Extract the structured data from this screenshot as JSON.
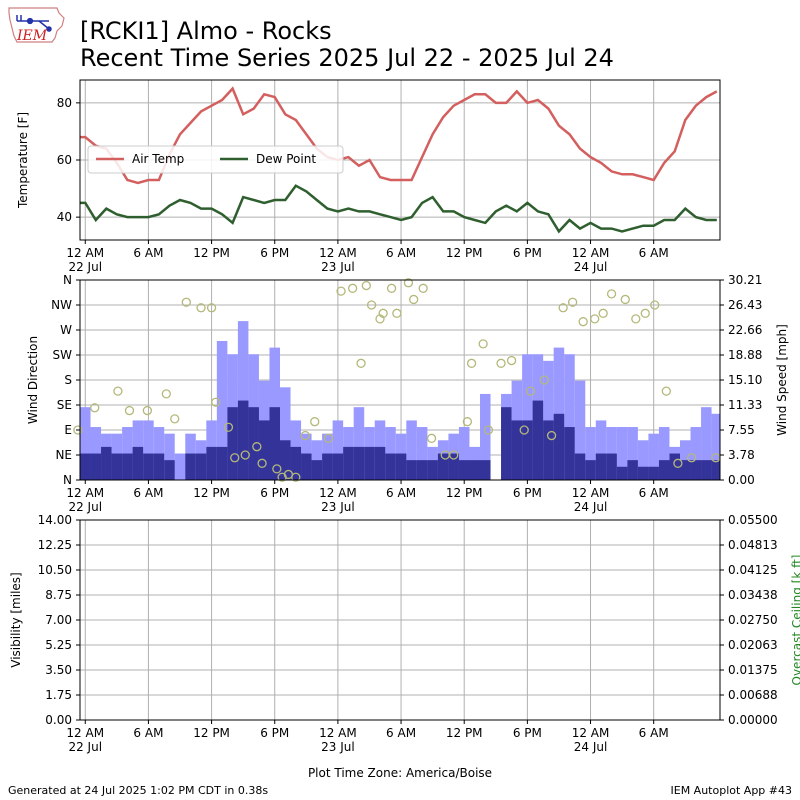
{
  "header": {
    "logo_text": "IEM",
    "title_line1": "[RCKI1] Almo - Rocks",
    "title_line2": "Recent Time Series 2025 Jul 22 - 2025 Jul 24"
  },
  "footer": {
    "generated": "Generated at 24 Jul 2025 1:02 PM CDT in 0.38s",
    "app": "IEM Autoplot App #43"
  },
  "chart_data": [
    {
      "type": "line",
      "ylabel": "Temperature [F]",
      "ylim": [
        32,
        88
      ],
      "yticks": [
        40,
        60,
        80
      ],
      "x_range_hours": [
        -0.5,
        60.3
      ],
      "grid": true,
      "legend_position": "center-left",
      "series": [
        {
          "name": "Air Temp",
          "color": "#d35f5f",
          "x": [
            -1,
            0,
            1,
            2,
            3,
            4,
            5,
            6,
            7,
            8,
            9,
            10,
            11,
            12,
            13,
            14,
            15,
            16,
            17,
            18,
            19,
            20,
            21,
            22,
            23,
            24,
            25,
            26,
            27,
            28,
            29,
            30,
            31,
            32,
            33,
            34,
            35,
            36,
            37,
            38,
            39,
            40,
            41,
            42,
            43,
            44,
            45,
            46,
            47,
            48,
            49,
            50,
            51,
            52,
            53,
            54,
            55,
            56,
            57,
            58,
            59,
            60
          ],
          "values": [
            68,
            68,
            65,
            64,
            59,
            53,
            52,
            53,
            53,
            62,
            69,
            73,
            77,
            79,
            81,
            85,
            76,
            78,
            83,
            82,
            76,
            74,
            69,
            64,
            61,
            60,
            61,
            58,
            60,
            54,
            53,
            53,
            53,
            61,
            69,
            75,
            79,
            81,
            83,
            83,
            80,
            80,
            84,
            80,
            81,
            78,
            72,
            69,
            64,
            61,
            59,
            56,
            55,
            55,
            54,
            53,
            59,
            63,
            74,
            79,
            82,
            84
          ]
        },
        {
          "name": "Dew Point",
          "color": "#2f5f2f",
          "x": [
            -1,
            0,
            1,
            2,
            3,
            4,
            5,
            6,
            7,
            8,
            9,
            10,
            11,
            12,
            13,
            14,
            15,
            16,
            17,
            18,
            19,
            20,
            21,
            22,
            23,
            24,
            25,
            26,
            27,
            28,
            29,
            30,
            31,
            32,
            33,
            34,
            35,
            36,
            37,
            38,
            39,
            40,
            41,
            42,
            43,
            44,
            45,
            46,
            47,
            48,
            49,
            50,
            51,
            52,
            53,
            54,
            55,
            56,
            57,
            58,
            59,
            60
          ],
          "values": [
            45,
            45,
            39,
            43,
            41,
            40,
            40,
            40,
            41,
            44,
            46,
            45,
            43,
            43,
            41,
            38,
            47,
            46,
            45,
            46,
            46,
            51,
            49,
            46,
            43,
            42,
            43,
            42,
            42,
            41,
            40,
            39,
            40,
            45,
            47,
            42,
            42,
            40,
            39,
            38,
            42,
            44,
            42,
            45,
            42,
            41,
            35,
            39,
            36,
            38,
            36,
            36,
            35,
            36,
            37,
            37,
            39,
            39,
            43,
            40,
            39,
            39
          ]
        }
      ]
    },
    {
      "type": "bar",
      "ylabel": "Wind Direction",
      "y2label": "Wind Speed [mph]",
      "direction_ticks": [
        "N",
        "NE",
        "E",
        "SE",
        "S",
        "SW",
        "W",
        "NW",
        "N"
      ],
      "speed_ticks": [
        "0.00",
        "3.78",
        "7.55",
        "11.33",
        "15.10",
        "18.88",
        "22.66",
        "26.43",
        "30.21"
      ],
      "ylim_speed": [
        0,
        30.21
      ],
      "x_range_hours": [
        -0.5,
        60.3
      ],
      "grid": true,
      "gust_color": "#9999ff",
      "speed_color": "#333399",
      "marker_color": "#b5b87a",
      "x": [
        -1,
        0,
        1,
        2,
        3,
        4,
        5,
        6,
        7,
        8,
        9,
        10,
        11,
        12,
        13,
        14,
        15,
        16,
        17,
        18,
        19,
        20,
        21,
        22,
        23,
        24,
        25,
        26,
        27,
        28,
        29,
        30,
        31,
        32,
        33,
        34,
        35,
        36,
        37,
        38,
        39,
        40,
        41,
        42,
        43,
        44,
        45,
        46,
        47,
        48,
        49,
        50,
        51,
        52,
        53,
        54,
        55,
        56,
        57,
        58,
        59,
        60
      ],
      "gust": [
        11,
        11,
        8,
        7,
        7,
        8,
        9,
        9,
        8,
        7,
        4,
        7,
        6,
        9,
        21,
        19,
        24,
        19,
        15,
        20,
        14,
        9,
        7,
        6,
        7,
        9,
        8,
        11,
        8,
        9,
        8,
        7,
        9,
        8,
        5,
        6,
        7,
        8,
        5,
        13,
        0,
        13,
        15,
        19,
        19,
        18,
        20,
        19,
        15,
        8,
        9,
        8,
        8,
        8,
        6,
        7,
        8,
        5,
        6,
        8,
        11,
        10
      ],
      "speed": [
        4,
        4,
        4,
        5,
        4,
        4,
        5,
        4,
        4,
        3,
        0,
        4,
        4,
        5,
        5,
        11,
        12,
        11,
        9,
        11,
        6,
        5,
        4,
        3,
        4,
        4,
        5,
        5,
        5,
        5,
        4,
        4,
        3,
        3,
        3,
        4,
        4,
        3,
        3,
        3,
        0,
        11,
        9,
        9,
        12,
        9,
        10,
        8,
        4,
        3,
        4,
        4,
        2,
        3,
        2,
        2,
        3,
        4,
        3,
        3,
        3,
        3
      ],
      "direction_deg": [
        90,
        130,
        160,
        125,
        125,
        155,
        110,
        320,
        310,
        310,
        140,
        95,
        40,
        45,
        60,
        30,
        20,
        5,
        10,
        5,
        80,
        105,
        75,
        340,
        345,
        210,
        350,
        315,
        290,
        300,
        345,
        300,
        355,
        325,
        345,
        75,
        45,
        45,
        105,
        210,
        245,
        90,
        210,
        215,
        90,
        160,
        180,
        80,
        310,
        320,
        285,
        290,
        300,
        335,
        325,
        290,
        300,
        315,
        160,
        30,
        40,
        40
      ],
      "direction_x": [
        -0.7,
        0.9,
        3.1,
        4.2,
        5.9,
        7.7,
        8.5,
        9.6,
        11.0,
        12.0,
        12.4,
        13.6,
        14.2,
        15.2,
        16.3,
        16.8,
        18.2,
        18.7,
        19.3,
        20.0,
        20.9,
        21.8,
        23.1,
        24.3,
        25.4,
        26.2,
        26.7,
        27.2,
        28.0,
        28.3,
        29.1,
        29.6,
        30.7,
        31.2,
        32.1,
        32.9,
        34.2,
        35.0,
        36.3,
        36.7,
        37.8,
        38.3,
        39.5,
        40.5,
        41.7,
        42.3,
        43.6,
        44.3,
        45.4,
        46.3,
        47.3,
        48.4,
        49.2,
        50.0,
        51.3,
        52.3,
        53.2,
        54.1,
        55.2,
        56.3,
        57.6,
        59.9
      ]
    },
    {
      "type": "line",
      "ylabel": "Visibility [miles]",
      "y2label": "Overcast Ceiling [k ft]",
      "ylim": [
        0,
        14
      ],
      "yticks": [
        "0.00",
        "1.75",
        "3.50",
        "5.25",
        "7.00",
        "8.75",
        "10.50",
        "12.25",
        "14.00"
      ],
      "ylim2": [
        0,
        0.055
      ],
      "y2ticks": [
        "0.00000",
        "0.00688",
        "0.01375",
        "0.02063",
        "0.02750",
        "0.03438",
        "0.04125",
        "0.04813",
        "0.05500"
      ],
      "x_range_hours": [
        -0.5,
        60.3
      ],
      "xlabel": "Plot Time Zone: America/Boise",
      "grid": true,
      "series": []
    }
  ],
  "x_axis": {
    "ticks": [
      {
        "hour": 0,
        "label": "12 AM",
        "sublabel": "22 Jul"
      },
      {
        "hour": 6,
        "label": "6 AM",
        "sublabel": ""
      },
      {
        "hour": 12,
        "label": "12 PM",
        "sublabel": ""
      },
      {
        "hour": 18,
        "label": "6 PM",
        "sublabel": ""
      },
      {
        "hour": 24,
        "label": "12 AM",
        "sublabel": "23 Jul"
      },
      {
        "hour": 30,
        "label": "6 AM",
        "sublabel": ""
      },
      {
        "hour": 36,
        "label": "12 PM",
        "sublabel": ""
      },
      {
        "hour": 42,
        "label": "6 PM",
        "sublabel": ""
      },
      {
        "hour": 48,
        "label": "12 AM",
        "sublabel": "24 Jul"
      },
      {
        "hour": 54,
        "label": "6 AM",
        "sublabel": ""
      }
    ]
  }
}
